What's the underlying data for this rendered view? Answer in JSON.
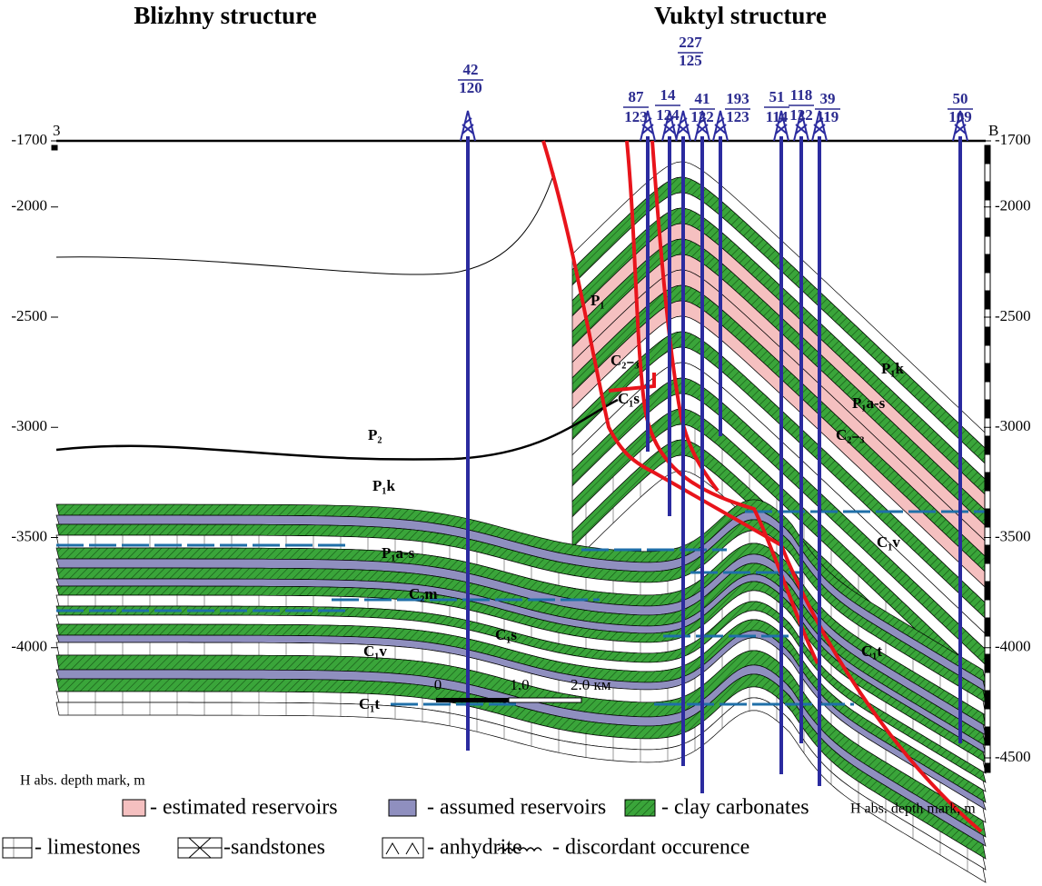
{
  "header": {
    "left_title": "Blizhny structure",
    "right_title": "Vuktyl structure"
  },
  "section": {
    "left_end": "3",
    "right_end": "B",
    "left_ticks": [
      -1700,
      -2000,
      -2500,
      -3000,
      -3500,
      -4000
    ],
    "right_ticks": [
      -1700,
      -2000,
      -2500,
      -3000,
      -3500,
      -4000,
      -4500
    ],
    "depth_label": "H abs. depth mark, m"
  },
  "wells": [
    {
      "number": 42,
      "value": 120
    },
    {
      "number": 87,
      "value": 123
    },
    {
      "number": 14,
      "value": 124
    },
    {
      "number": 227,
      "value": 125
    },
    {
      "number": 41,
      "value": 122
    },
    {
      "number": 193,
      "value": 123
    },
    {
      "number": 51,
      "value": 114
    },
    {
      "number": 118,
      "value": 122
    },
    {
      "number": 39,
      "value": 119
    },
    {
      "number": 50,
      "value": 109
    }
  ],
  "formations": [
    "P₁",
    "C₂₋₃",
    "C₁s",
    "P₂",
    "P₁k",
    "P₁a-s",
    "C₂m",
    "C₁s",
    "C₁v",
    "C₁t",
    "P₁k",
    "P₁a-s",
    "C₂₋₃",
    "C₁v",
    "C₁t"
  ],
  "scale": {
    "ticks": [
      "0",
      "1.0",
      "2.0 км"
    ]
  },
  "legend": {
    "row1": [
      "- estimated reservoirs",
      "- assumed reservoirs",
      "- clay carbonates",
      "H abs. depth mark, m"
    ],
    "row2": [
      "- limestones",
      "-sandstones",
      "- anhydrite",
      "- discordant occurence"
    ]
  }
}
